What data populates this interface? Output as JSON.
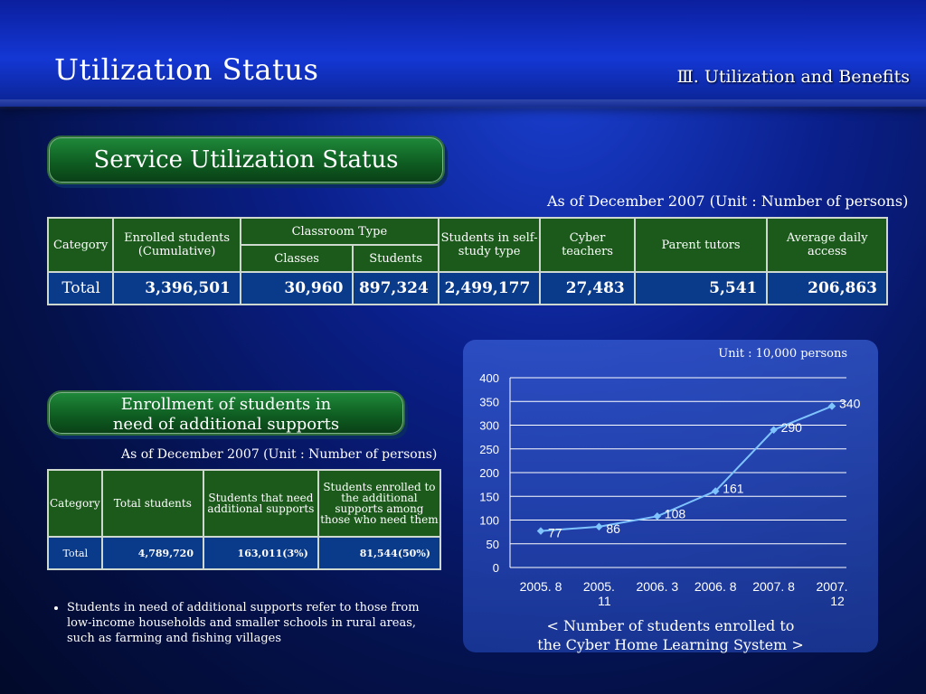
{
  "header": {
    "title": "Utilization Status",
    "section": "Ⅲ. Utilization and Benefits"
  },
  "service": {
    "heading": "Service Utilization Status",
    "asof": "As of December 2007 (Unit : Number of persons)",
    "columns": {
      "category": "Category",
      "enrolled": "Enrolled students (Cumulative)",
      "classroom": "Classroom Type",
      "classes": "Classes",
      "students": "Students",
      "selfstudy": "Students in self-study type",
      "cyber": "Cyber teachers",
      "parent": "Parent tutors",
      "daily": "Average daily access"
    },
    "row": {
      "label": "Total",
      "enrolled": "3,396,501",
      "classes": "30,960",
      "students": "897,324",
      "selfstudy": "2,499,177",
      "cyber": "27,483",
      "parent": "5,541",
      "daily": "206,863"
    }
  },
  "support": {
    "heading_line1": "Enrollment of students in",
    "heading_line2": "need of additional supports",
    "asof": "As of December 2007 (Unit : Number of persons)",
    "columns": {
      "category": "Category",
      "total": "Total students",
      "need": "Students that need additional supports",
      "enrolled": "Students enrolled to the additional supports among those who need them"
    },
    "row": {
      "label": "Total",
      "total": "4,789,720",
      "need": "163,011(3%)",
      "enrolled": "81,544(50%)"
    },
    "note": "Students in need of additional supports refer to those from low-income households and smaller schools in rural areas, such as farming and fishing villages"
  },
  "chart_data": {
    "type": "line",
    "unit_label": "Unit : 10,000 persons",
    "categories": [
      "2005. 8",
      "2005. 11",
      "2006. 3",
      "2006. 8",
      "2007. 8",
      "2007. 12"
    ],
    "values": [
      77,
      86,
      108,
      161,
      290,
      340
    ],
    "ylim": [
      0,
      400
    ],
    "yticks": [
      0,
      50,
      100,
      150,
      200,
      250,
      300,
      350,
      400
    ],
    "grid": true,
    "line_color": "#7fc4ff",
    "caption_line1": "< Number of students enrolled to",
    "caption_line2": "the Cyber Home Learning System >"
  }
}
